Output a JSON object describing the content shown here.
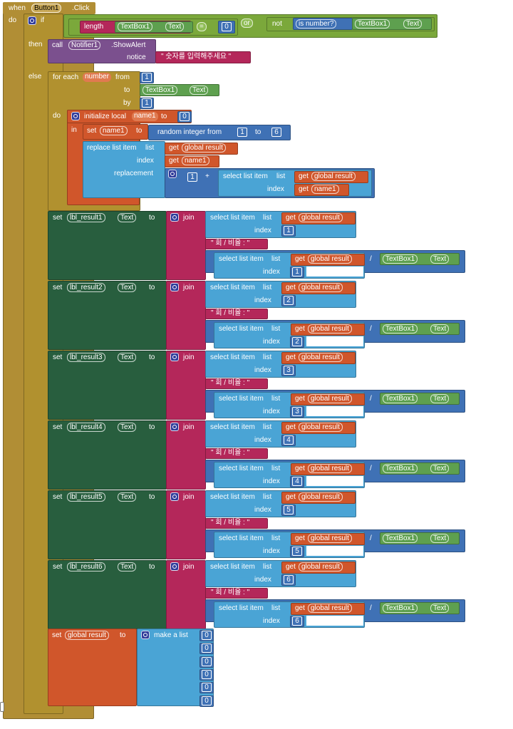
{
  "event": {
    "when": "when",
    "component": "Button1",
    "event": ".Click",
    "do": "do"
  },
  "if_block": {
    "if": "if",
    "then": "then",
    "else": "else",
    "or": "or",
    "not": "not",
    "length": "length",
    "textbox": "TextBox1",
    "text": "Text",
    "eq": "=",
    "zero": "0",
    "isnumber": "is number?"
  },
  "alert": {
    "call": "call",
    "component": "Notifier1",
    ".method": ".ShowAlert",
    "method": ".ShowAlert",
    "notice": "notice",
    "message": "\" 숫자를 입력해주세요 \""
  },
  "loop": {
    "for_each": "for each",
    "var": "number",
    "from": "from",
    "to": "to",
    "by": "by",
    "do": "do",
    "from_value": "1",
    "by_value": "1",
    "textbox": "TextBox1",
    "text": "Text"
  },
  "local": {
    "initialize": "initialize local",
    "name": "name1",
    "to": "to",
    "value": "0",
    "in": "in",
    "set": "set",
    "random": "random integer from",
    "low": "1",
    "to2": "to",
    "high": "6",
    "replace": "replace list item",
    "list": "list",
    "get": "get",
    "global_result": "global result",
    "index": "index",
    "replacement": "replacement",
    "plus": "+",
    "one": "1",
    "select": "select list item"
  },
  "rows": [
    {
      "label": "lbl_result1",
      "index": "1"
    },
    {
      "label": "lbl_result2",
      "index": "2"
    },
    {
      "label": "lbl_result3",
      "index": "3"
    },
    {
      "label": "lbl_result4",
      "index": "4"
    },
    {
      "label": "lbl_result5",
      "index": "5"
    },
    {
      "label": "lbl_result6",
      "index": "6"
    }
  ],
  "row_words": {
    "set": "set",
    "text": "Text",
    "to": "to",
    "join": "join",
    "select": "select list item",
    "list": "list",
    "get": "get",
    "global_result": "global result",
    "index": "index",
    "ratio": "\" 회 / 비율 : \"",
    "divide": "/",
    "textbox": "TextBox1"
  },
  "final": {
    "set": "set",
    "global_result": "global result",
    "to": "to",
    "make_list": "make a list",
    "zeros": [
      "0",
      "0",
      "0",
      "0",
      "0",
      "0"
    ]
  },
  "colors": {
    "event": "#b18e35",
    "control": "#b1912f",
    "logic": "#7ba83b",
    "text": "#b4275a",
    "math": "#3f71b5",
    "list": "#4aa4d5",
    "variable": "#d0562b",
    "component_set": "#285e3e",
    "component_get": "#5ea04f",
    "procedure": "#7b508e"
  }
}
